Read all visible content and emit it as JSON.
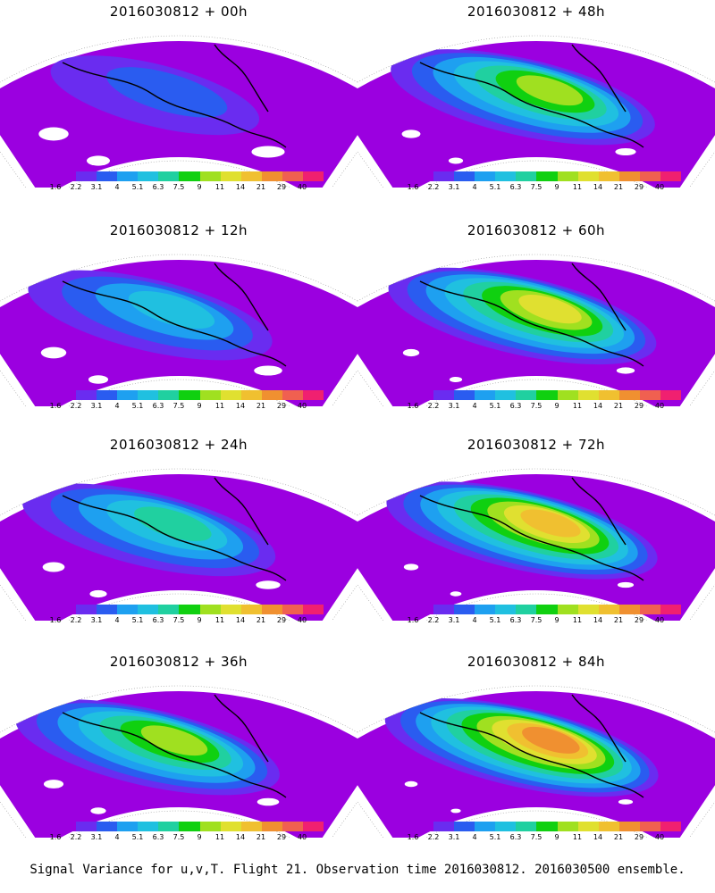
{
  "colorbar": {
    "labels": [
      "1.6",
      "2.2",
      "3.1",
      "4",
      "5.1",
      "6.3",
      "7.5",
      "9",
      "11",
      "14",
      "21",
      "29",
      "40"
    ],
    "colors": [
      "#9b00e0",
      "#6a2cf0",
      "#2a5cf0",
      "#1ea0f0",
      "#20c0e0",
      "#20d0a0",
      "#10d010",
      "#a0e020",
      "#e0e030",
      "#f0c030",
      "#f09030",
      "#f06050",
      "#f02070"
    ]
  },
  "panels": [
    {
      "title": "2016030812 + 00h",
      "level": 0.1
    },
    {
      "title": "2016030812 + 48h",
      "level": 0.6
    },
    {
      "title": "2016030812 + 12h",
      "level": 0.3
    },
    {
      "title": "2016030812 + 60h",
      "level": 0.7
    },
    {
      "title": "2016030812 + 24h",
      "level": 0.45
    },
    {
      "title": "2016030812 + 72h",
      "level": 0.78
    },
    {
      "title": "2016030812 + 36h",
      "level": 0.55
    },
    {
      "title": "2016030812 + 84h",
      "level": 0.85
    }
  ],
  "footer": "Signal Variance for u,v,T. Flight 21. Observation time 2016030812. 2016030500 ensemble."
}
